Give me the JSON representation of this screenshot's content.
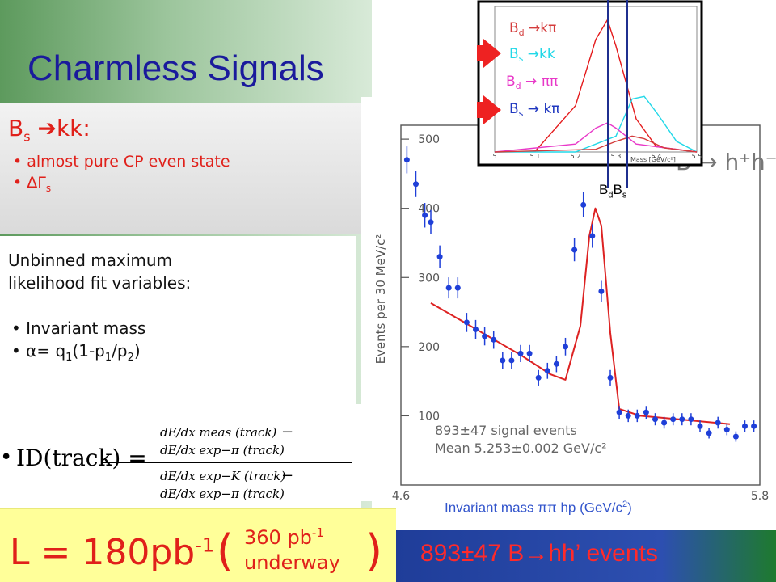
{
  "slide": {
    "title": "Charmless Signals",
    "bs_heading_main": "B",
    "bs_heading_sub": "s",
    "bs_heading_rest": "kk:",
    "bs_bullets": [
      "almost pure CP even state",
      "ΔΓ"
    ],
    "bs_bullet2_sub": "s",
    "fit_intro": [
      "Unbinned  maximum",
      "likelihood fit variables:"
    ],
    "fit_bullets": [
      "Invariant mass"
    ],
    "alpha_formula": {
      "lead": "α= q",
      "s1": "1",
      "mid": "(1-p",
      "s2": "1",
      "mid2": "/p",
      "s3": "2",
      "end": ")"
    },
    "pid_formula": {
      "lhs": "ID(track) =",
      "num_a": "dE/dx meas (track)",
      "num_b": "dE/dx exp−π (track)",
      "den_a": "dE/dx exp−K (track)",
      "den_b": "dE/dx exp−π (track)"
    },
    "luminosity": {
      "main": "L = 180pb",
      "main_sup": "-1",
      "open": "(",
      "top": "360 pb",
      "top_sup": "-1",
      "bottom": "underway",
      "close": ")"
    },
    "events_banner": "893±47 B→hh’ events",
    "bdbs_label": {
      "b1": "B",
      "s1": "d",
      "b2": "B",
      "s2": "s"
    },
    "xaxis_caption": {
      "pre": "Invariant mass ππ hp (GeV/c",
      "sup": "2",
      "post": ")"
    }
  },
  "chart_data": [
    {
      "type": "scatter",
      "title": "",
      "plot_label": "B → h⁺h⁻",
      "ylabel": "Events per 30 MeV/c²",
      "xlabel": "Invariant mass ππ hp (GeV/c²)",
      "xlim": [
        4.6,
        5.8
      ],
      "ylim": [
        0,
        520
      ],
      "x_ticks": [
        "4.6",
        "5.8"
      ],
      "y_ticks": [
        "100",
        "200",
        "300",
        "400",
        "500"
      ],
      "annotations": [
        "893±47 signal events",
        "Mean 5.253±0.002 GeV/c²"
      ],
      "series": [
        {
          "x": [
            4.62,
            4.65,
            4.68,
            4.7,
            4.73,
            4.76,
            4.79,
            4.82,
            4.85,
            4.88,
            4.91,
            4.94,
            4.97,
            5.0,
            5.03,
            5.06,
            5.09,
            5.12,
            5.15,
            5.18,
            5.21,
            5.24,
            5.27,
            5.3,
            5.33,
            5.36,
            5.39,
            5.42,
            5.45,
            5.48,
            5.51,
            5.54,
            5.57,
            5.6,
            5.63,
            5.66,
            5.69,
            5.72,
            5.75,
            5.78
          ],
          "y": [
            470,
            435,
            390,
            380,
            330,
            285,
            285,
            235,
            225,
            215,
            210,
            180,
            180,
            190,
            190,
            155,
            165,
            175,
            200,
            340,
            405,
            360,
            280,
            155,
            105,
            100,
            100,
            105,
            95,
            90,
            95,
            95,
            95,
            85,
            75,
            90,
            80,
            70,
            85,
            85
          ]
        },
        {
          "name": "fit",
          "x": [
            4.7,
            4.8,
            4.9,
            5.0,
            5.1,
            5.15,
            5.2,
            5.23,
            5.25,
            5.27,
            5.3,
            5.33,
            5.4,
            5.5,
            5.6,
            5.7
          ],
          "y": [
            263,
            238,
            213,
            188,
            160,
            152,
            230,
            360,
            400,
            375,
            220,
            110,
            100,
            96,
            92,
            88
          ]
        }
      ]
    },
    {
      "type": "line",
      "title": "",
      "xlabel": "Mass [GeV/c²]",
      "ylabel": "",
      "xlim": [
        5.0,
        5.5
      ],
      "x_ticks": [
        "5",
        "5.1",
        "5.2",
        "5.3",
        "5.4",
        "5.5"
      ],
      "legend": [
        "B_d →kπ",
        "B_s →kk",
        "B_d → ππ",
        "B_s → kπ"
      ],
      "colors": [
        "#e41a1c",
        "#22d8e8",
        "#e838c8",
        "#d43c3c"
      ],
      "series": [
        {
          "name": "B_d →kπ",
          "x": [
            5.0,
            5.1,
            5.2,
            5.25,
            5.279,
            5.3,
            5.35,
            5.4,
            5.5
          ],
          "y": [
            0,
            0.5,
            35,
            85,
            100,
            80,
            25,
            4,
            0
          ]
        },
        {
          "name": "B_s →kk",
          "x": [
            5.0,
            5.2,
            5.3,
            5.34,
            5.37,
            5.4,
            5.45,
            5.5
          ],
          "y": [
            0,
            0,
            12,
            40,
            42,
            30,
            8,
            0
          ]
        },
        {
          "name": "B_d → ππ",
          "x": [
            5.0,
            5.2,
            5.25,
            5.279,
            5.3,
            5.35,
            5.5
          ],
          "y": [
            0,
            6,
            18,
            22,
            18,
            6,
            0
          ]
        },
        {
          "name": "B_s → kπ",
          "x": [
            5.0,
            5.25,
            5.3,
            5.34,
            5.37,
            5.42,
            5.5
          ],
          "y": [
            0,
            2,
            8,
            12,
            10,
            3,
            0
          ]
        }
      ]
    }
  ]
}
